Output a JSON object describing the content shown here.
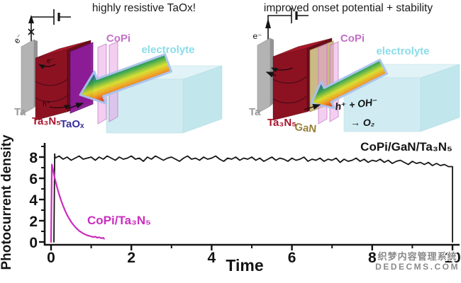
{
  "panels": {
    "left": {
      "title": "highly resistive TaOx!",
      "labels": {
        "electron": "e⁻",
        "inner_electron": "e⁻",
        "inner_hole": "h⁺",
        "ta": "Ta",
        "ta3n5": "Ta₃N₅",
        "taox": "TaOₓ",
        "copi": "CoPi",
        "electrolyte": "electrolyte"
      }
    },
    "right": {
      "title": "improved onset potential + stability",
      "labels": {
        "electron": "e⁻",
        "ta": "Ta",
        "ta3n5": "Ta₃N₅",
        "gan": "GaN",
        "copi": "CoPi",
        "electrolyte": "electrolyte",
        "reaction_line1": "h⁺ + OH⁻",
        "reaction_line2": "→ O₂"
      }
    }
  },
  "chart_data": {
    "type": "line",
    "title": "",
    "xlabel": "Time",
    "ylabel": "Photocurrent density",
    "xlim": [
      0,
      10.2
    ],
    "ylim": [
      0,
      9.3
    ],
    "grid": false,
    "x_ticks": [
      0,
      2,
      4,
      6,
      8,
      10
    ],
    "x_minor_ticks": [
      1,
      3,
      5,
      7,
      9
    ],
    "y_ticks": [
      0,
      2,
      4,
      6,
      8
    ],
    "y_minor_ticks": [
      1,
      3,
      5,
      7,
      9
    ],
    "legend_position": "inline-labels",
    "series": [
      {
        "name": "CoPi/GaN/Ta₃N₅",
        "color": "#141414",
        "points": [
          [
            0.07,
            0
          ],
          [
            0.09,
            8.3
          ],
          [
            0.1,
            7.9
          ],
          [
            0.2,
            8.1
          ],
          [
            0.3,
            7.8
          ],
          [
            0.4,
            8.0
          ],
          [
            0.5,
            7.7
          ],
          [
            0.6,
            7.9
          ],
          [
            0.7,
            8.1
          ],
          [
            0.8,
            7.8
          ],
          [
            0.9,
            7.9
          ],
          [
            1.0,
            8.0
          ],
          [
            1.1,
            7.7
          ],
          [
            1.2,
            8.0
          ],
          [
            1.3,
            7.8
          ],
          [
            1.4,
            8.1
          ],
          [
            1.5,
            7.9
          ],
          [
            1.6,
            7.7
          ],
          [
            1.7,
            8.0
          ],
          [
            1.8,
            7.8
          ],
          [
            1.9,
            7.9
          ],
          [
            2.0,
            8.1
          ],
          [
            2.1,
            7.8
          ],
          [
            2.2,
            7.9
          ],
          [
            2.3,
            7.6
          ],
          [
            2.4,
            8.0
          ],
          [
            2.5,
            7.8
          ],
          [
            2.6,
            8.1
          ],
          [
            2.7,
            7.9
          ],
          [
            2.8,
            7.7
          ],
          [
            2.9,
            7.9
          ],
          [
            3.0,
            8.0
          ],
          [
            3.1,
            7.8
          ],
          [
            3.2,
            7.6
          ],
          [
            3.3,
            7.9
          ],
          [
            3.4,
            8.1
          ],
          [
            3.5,
            7.8
          ],
          [
            3.6,
            7.9
          ],
          [
            3.7,
            7.7
          ],
          [
            3.8,
            8.0
          ],
          [
            3.9,
            7.8
          ],
          [
            4.0,
            7.9
          ],
          [
            4.1,
            8.1
          ],
          [
            4.2,
            7.8
          ],
          [
            4.3,
            7.6
          ],
          [
            4.4,
            7.9
          ],
          [
            4.5,
            7.8
          ],
          [
            4.6,
            8.0
          ],
          [
            4.7,
            7.7
          ],
          [
            4.8,
            7.9
          ],
          [
            4.9,
            7.8
          ],
          [
            5.0,
            8.0
          ],
          [
            5.1,
            7.7
          ],
          [
            5.2,
            7.9
          ],
          [
            5.3,
            7.6
          ],
          [
            5.4,
            7.8
          ],
          [
            5.5,
            8.0
          ],
          [
            5.6,
            7.7
          ],
          [
            5.7,
            7.9
          ],
          [
            5.8,
            7.8
          ],
          [
            5.9,
            7.6
          ],
          [
            6.0,
            7.9
          ],
          [
            6.1,
            7.7
          ],
          [
            6.2,
            7.8
          ],
          [
            6.3,
            8.0
          ],
          [
            6.4,
            7.6
          ],
          [
            6.5,
            7.8
          ],
          [
            6.6,
            7.7
          ],
          [
            6.7,
            7.9
          ],
          [
            6.8,
            7.6
          ],
          [
            6.9,
            7.8
          ],
          [
            7.0,
            7.7
          ],
          [
            7.1,
            7.9
          ],
          [
            7.2,
            7.5
          ],
          [
            7.3,
            7.8
          ],
          [
            7.4,
            7.6
          ],
          [
            7.5,
            7.7
          ],
          [
            7.6,
            7.9
          ],
          [
            7.7,
            7.6
          ],
          [
            7.8,
            7.8
          ],
          [
            7.9,
            7.5
          ],
          [
            8.0,
            7.7
          ],
          [
            8.1,
            7.6
          ],
          [
            8.2,
            7.8
          ],
          [
            8.3,
            7.5
          ],
          [
            8.4,
            7.7
          ],
          [
            8.5,
            7.4
          ],
          [
            8.6,
            7.6
          ],
          [
            8.7,
            7.7
          ],
          [
            8.8,
            7.5
          ],
          [
            8.9,
            7.3
          ],
          [
            9.0,
            7.6
          ],
          [
            9.1,
            7.4
          ],
          [
            9.2,
            7.5
          ],
          [
            9.3,
            7.3
          ],
          [
            9.4,
            7.5
          ],
          [
            9.5,
            7.2
          ],
          [
            9.6,
            7.4
          ],
          [
            9.7,
            7.2
          ],
          [
            9.8,
            7.3
          ],
          [
            9.9,
            7.1
          ],
          [
            10.0,
            7.1
          ],
          [
            10.0,
            0
          ]
        ]
      },
      {
        "name": "CoPi/Ta₃N₅",
        "color": "#cb2dbe",
        "points": [
          [
            0.0,
            0.0
          ],
          [
            0.02,
            7.3
          ],
          [
            0.05,
            6.8
          ],
          [
            0.08,
            6.2
          ],
          [
            0.12,
            5.6
          ],
          [
            0.16,
            5.0
          ],
          [
            0.2,
            4.5
          ],
          [
            0.25,
            3.9
          ],
          [
            0.3,
            3.4
          ],
          [
            0.35,
            2.95
          ],
          [
            0.4,
            2.55
          ],
          [
            0.45,
            2.2
          ],
          [
            0.5,
            1.9
          ],
          [
            0.55,
            1.65
          ],
          [
            0.6,
            1.42
          ],
          [
            0.65,
            1.22
          ],
          [
            0.7,
            1.05
          ],
          [
            0.75,
            0.92
          ],
          [
            0.8,
            0.8
          ],
          [
            0.85,
            0.72
          ],
          [
            0.9,
            0.63
          ],
          [
            0.95,
            0.57
          ],
          [
            1.0,
            0.52
          ],
          [
            1.05,
            0.46
          ],
          [
            1.1,
            0.5
          ],
          [
            1.15,
            0.4
          ],
          [
            1.2,
            0.45
          ],
          [
            1.25,
            0.35
          ],
          [
            1.3,
            0.4
          ],
          [
            1.32,
            0.3
          ]
        ]
      }
    ]
  },
  "watermark": {
    "line1": "织梦内容管理系统",
    "line2": "DEDECMS.COM"
  },
  "colors": {
    "magenta_series": "#cb2dbe",
    "black_series": "#141414",
    "ta3n5_red": "#8c1222",
    "taox_purple": "#8e1d9a",
    "gan_tan": "#cfc08a",
    "copi_pink": "#e6a6e0",
    "electrolyte_cyan": "#cdebf1",
    "ta_gray": "#b3b3b3",
    "watermark_gray": "#8a8a8a"
  }
}
